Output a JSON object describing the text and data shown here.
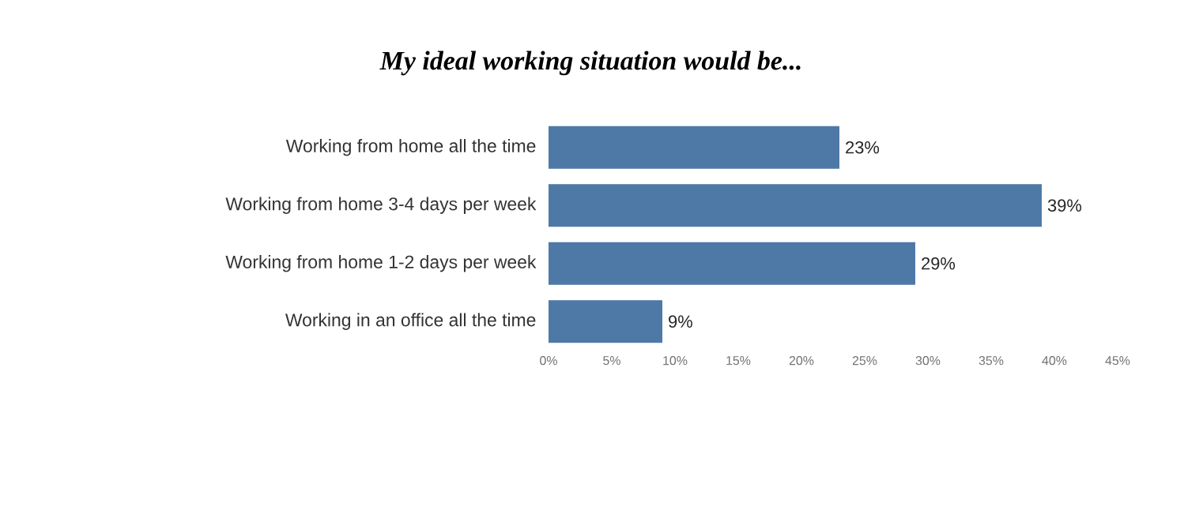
{
  "chart_data": {
    "type": "bar",
    "orientation": "horizontal",
    "title": "My ideal working situation would be...",
    "categories": [
      "Working from home all the time",
      "Working from home 3-4 days per week",
      "Working from home 1-2 days per week",
      "Working in an office all the time"
    ],
    "values": [
      23,
      39,
      29,
      9
    ],
    "value_labels": [
      "23%",
      "39%",
      "29%",
      "9%"
    ],
    "color": "#4e79a7",
    "xlim": [
      0,
      45
    ],
    "xticks": [
      {
        "value": 0,
        "label": "0%"
      },
      {
        "value": 5,
        "label": "5%"
      },
      {
        "value": 10,
        "label": "10%"
      },
      {
        "value": 15,
        "label": "15%"
      },
      {
        "value": 20,
        "label": "20%"
      },
      {
        "value": 25,
        "label": "25%"
      },
      {
        "value": 30,
        "label": "30%"
      },
      {
        "value": 35,
        "label": "35%"
      },
      {
        "value": 40,
        "label": "40%"
      },
      {
        "value": 45,
        "label": "45%"
      }
    ],
    "grid": false
  }
}
